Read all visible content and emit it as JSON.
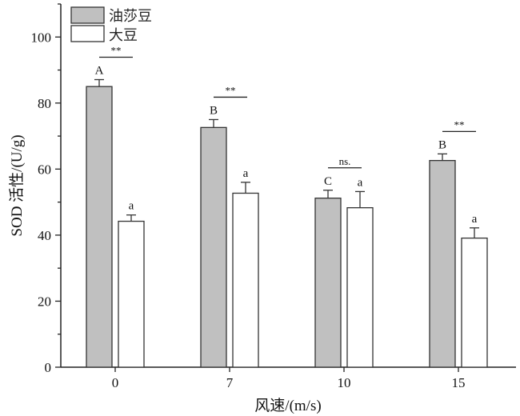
{
  "chart_data": {
    "type": "bar",
    "title": "",
    "xlabel": "风速/(m/s)",
    "ylabel": "SOD 活性/(U/g)",
    "ylim": [
      0,
      110
    ],
    "yticks": [
      0,
      20,
      40,
      60,
      80,
      100
    ],
    "categories": [
      "0",
      "7",
      "10",
      "15"
    ],
    "legend_position": "top-left",
    "series": [
      {
        "name": "油莎豆",
        "color": "#c0c0c0",
        "values": [
          85.0,
          72.6,
          51.2,
          62.6
        ],
        "errors": [
          2.1,
          2.4,
          2.4,
          2.0
        ],
        "letters": [
          "A",
          "B",
          "C",
          "B"
        ]
      },
      {
        "name": "大豆",
        "color": "#ffffff",
        "values": [
          44.2,
          52.7,
          48.3,
          39.1
        ],
        "errors": [
          1.9,
          3.3,
          4.9,
          3.1
        ],
        "letters": [
          "a",
          "a",
          "a",
          "a"
        ]
      }
    ],
    "significance": [
      "**",
      "**",
      "ns.",
      "**"
    ]
  }
}
